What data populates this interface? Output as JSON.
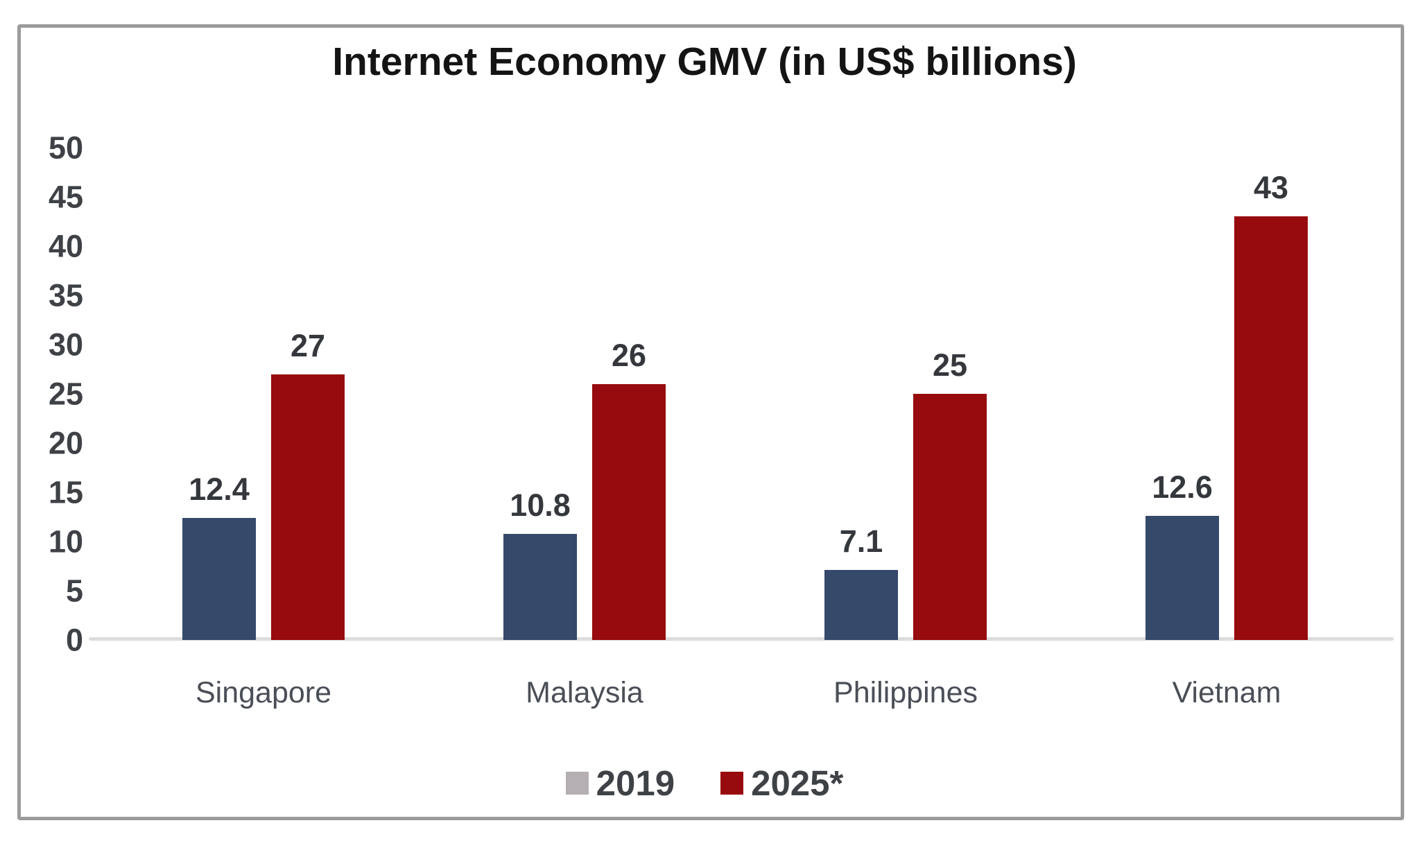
{
  "chart_data": {
    "type": "bar",
    "title": "Internet Economy GMV (in US$ billions)",
    "categories": [
      "Singapore",
      "Malaysia",
      "Philippines",
      "Vietnam"
    ],
    "series": [
      {
        "name": "2019",
        "color": "#35496A",
        "values": [
          12.4,
          10.8,
          7.1,
          12.6
        ]
      },
      {
        "name": "2025*",
        "color": "#970B0E",
        "values": [
          27,
          26,
          25,
          43
        ]
      }
    ],
    "value_labels": [
      [
        "12.4",
        "10.8",
        "7.1",
        "12.6"
      ],
      [
        "27",
        "26",
        "25",
        "43"
      ]
    ],
    "ylim": [
      0,
      50
    ],
    "yticks": [
      0,
      5,
      10,
      15,
      20,
      25,
      30,
      35,
      40,
      45,
      50
    ],
    "grid": false,
    "legend_position": "bottom",
    "legend": [
      {
        "label": "2019",
        "swatch_color": "#B5AFB4"
      },
      {
        "label": "2025*",
        "swatch_color": "#970B0E"
      }
    ]
  },
  "colors": {
    "frame_border": "#9b9b9b",
    "baseline": "#dcdcdc",
    "tick_text": "#3e4146",
    "value_text": "#34373c",
    "category_text": "#4a4e57",
    "title_text": "#141414",
    "background": "#ffffff"
  }
}
